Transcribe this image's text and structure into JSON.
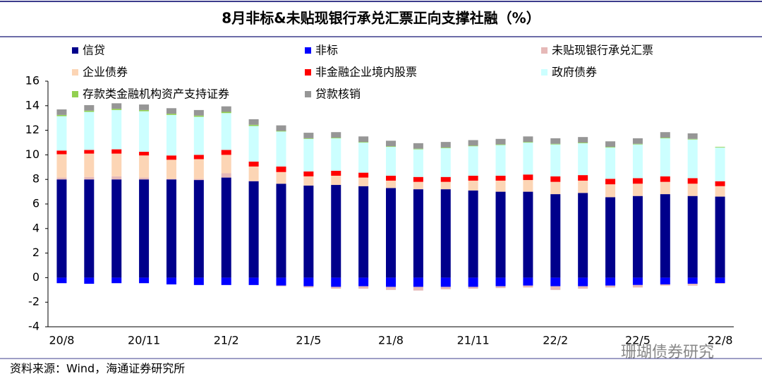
{
  "chart_data": {
    "type": "stacked_bar",
    "title": "8月非标&未贴现银行承兑汇票正向支撑社融（%）",
    "source": "资料来源：Wind，海通证券研究所",
    "watermark": "珊瑚债券研究",
    "categories": [
      "20/8",
      null,
      null,
      "20/11",
      null,
      null,
      "21/2",
      null,
      null,
      "21/5",
      null,
      null,
      "21/8",
      null,
      null,
      "21/11",
      null,
      null,
      "22/2",
      null,
      null,
      "22/5",
      null,
      null,
      "22/8"
    ],
    "ylim": [
      -4,
      16
    ],
    "yticks": [
      -4,
      -2,
      0,
      2,
      4,
      6,
      8,
      10,
      12,
      14,
      16
    ],
    "grid": false,
    "series": [
      {
        "name": "信贷",
        "color": "#00008b",
        "values": [
          8.0,
          8.0,
          8.0,
          8.0,
          8.0,
          7.95,
          8.15,
          7.85,
          7.65,
          7.5,
          7.55,
          7.45,
          7.3,
          7.2,
          7.2,
          7.1,
          7.0,
          7.0,
          6.8,
          6.9,
          6.55,
          6.65,
          6.8,
          6.65,
          6.6
        ]
      },
      {
        "name": "非标",
        "color": "#0000ff",
        "values": [
          -0.45,
          -0.5,
          -0.45,
          -0.45,
          -0.55,
          -0.6,
          -0.6,
          -0.6,
          -0.65,
          -0.7,
          -0.75,
          -0.7,
          -0.75,
          -0.75,
          -0.75,
          -0.75,
          -0.7,
          -0.65,
          -0.7,
          -0.7,
          -0.65,
          -0.6,
          -0.55,
          -0.5,
          -0.45
        ]
      },
      {
        "name": "未贴现银行承兑汇票",
        "color": "#e6b9b8",
        "values": [
          0.15,
          0.2,
          0.25,
          0.15,
          0.05,
          0.1,
          0.35,
          0.05,
          -0.05,
          -0.1,
          -0.15,
          -0.2,
          -0.25,
          -0.3,
          -0.2,
          -0.15,
          -0.15,
          -0.15,
          -0.3,
          -0.2,
          -0.15,
          -0.2,
          -0.1,
          -0.15,
          -0.05
        ]
      },
      {
        "name": "企业债券",
        "color": "#fcd5b5",
        "values": [
          1.9,
          1.9,
          1.85,
          1.8,
          1.55,
          1.6,
          1.5,
          1.15,
          0.95,
          0.75,
          0.75,
          0.7,
          0.6,
          0.6,
          0.6,
          0.8,
          0.9,
          0.95,
          1.0,
          1.0,
          1.05,
          1.0,
          1.0,
          1.0,
          0.85
        ]
      },
      {
        "name": "非金融企业境内股票",
        "color": "#ff0000",
        "values": [
          0.3,
          0.3,
          0.35,
          0.3,
          0.35,
          0.35,
          0.4,
          0.4,
          0.45,
          0.4,
          0.4,
          0.4,
          0.4,
          0.4,
          0.4,
          0.4,
          0.4,
          0.45,
          0.45,
          0.45,
          0.45,
          0.45,
          0.45,
          0.45,
          0.4
        ]
      },
      {
        "name": "政府债券",
        "color": "#ccffff",
        "values": [
          2.8,
          3.1,
          3.2,
          3.3,
          3.3,
          3.1,
          3.0,
          2.9,
          2.85,
          2.65,
          2.65,
          2.45,
          2.35,
          2.25,
          2.35,
          2.4,
          2.5,
          2.6,
          2.6,
          2.6,
          2.55,
          2.75,
          3.1,
          3.15,
          2.75
        ]
      },
      {
        "name": "存款类金融机构资产支持证券",
        "color": "#92d050",
        "values": [
          0.1,
          0.1,
          0.1,
          0.1,
          0.1,
          0.1,
          0.1,
          0.1,
          0.05,
          0.05,
          0.05,
          0.05,
          0.05,
          0.05,
          0.05,
          0.05,
          0.05,
          0.05,
          0.05,
          0.05,
          0.05,
          0.05,
          0.05,
          0.05,
          0.05
        ]
      },
      {
        "name": "贷款核销",
        "color": "#969696",
        "values": [
          0.45,
          0.45,
          0.45,
          0.45,
          0.45,
          0.45,
          0.45,
          0.45,
          0.45,
          0.45,
          0.45,
          0.45,
          0.45,
          0.45,
          0.45,
          0.45,
          0.45,
          0.45,
          0.45,
          0.45,
          0.45,
          0.45,
          0.45,
          0.45,
          null
        ]
      }
    ]
  }
}
